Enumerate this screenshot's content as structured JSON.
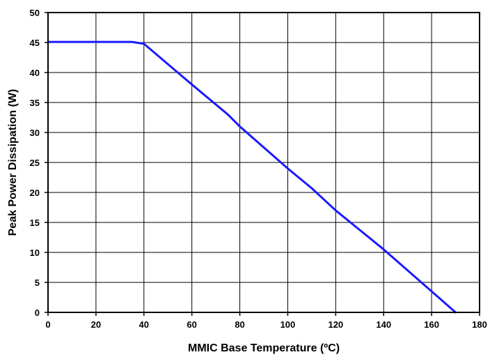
{
  "chart_data": {
    "type": "line",
    "title": "",
    "xlabel": "MMIC Base Temperature (ºC)",
    "ylabel": "Peak Power Dissipation (W)",
    "xlim": [
      0,
      180
    ],
    "ylim": [
      0,
      50
    ],
    "xticks": [
      0,
      20,
      40,
      60,
      80,
      100,
      120,
      140,
      160,
      180
    ],
    "yticks": [
      0,
      5,
      10,
      15,
      20,
      25,
      30,
      35,
      40,
      45,
      50
    ],
    "grid": true,
    "legend": "none",
    "series": [
      {
        "color": "#1a1aff",
        "x": [
          0,
          35,
          40,
          60,
          75,
          80,
          100,
          110,
          120,
          140,
          160,
          170
        ],
        "y": [
          45.1,
          45.1,
          44.8,
          38,
          33,
          31,
          24,
          20.7,
          17,
          10.5,
          3.5,
          0
        ]
      }
    ]
  }
}
